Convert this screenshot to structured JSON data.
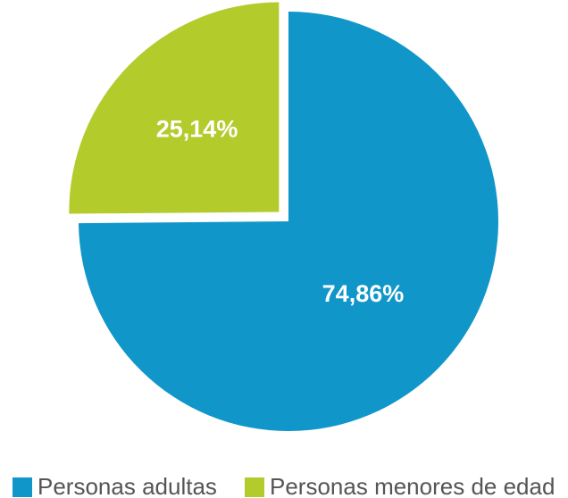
{
  "chart_data": {
    "type": "pie",
    "categories": [
      "Personas adultas",
      "Personas menores de edad"
    ],
    "values": [
      74.86,
      25.14
    ],
    "value_labels": [
      "74,86%",
      "25,14%"
    ],
    "colors": [
      "#1096c8",
      "#b4cb2c"
    ],
    "exploded": [
      false,
      true
    ],
    "legend": "bottom"
  }
}
